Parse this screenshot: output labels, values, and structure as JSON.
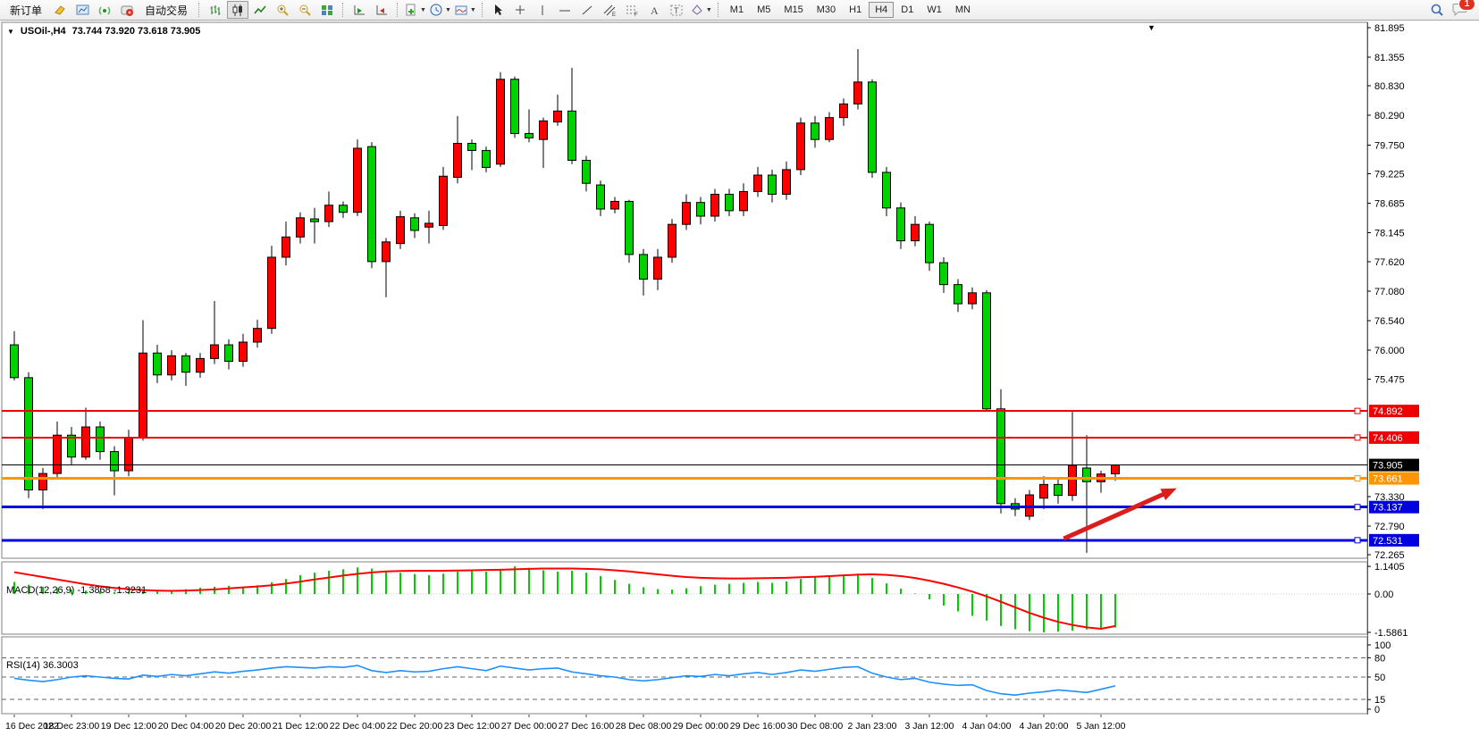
{
  "toolbar": {
    "new_order_label": "新订单",
    "auto_trading_label": "自动交易",
    "timeframes": [
      "M1",
      "M5",
      "M15",
      "M30",
      "H1",
      "H4",
      "D1",
      "W1",
      "MN"
    ],
    "active_timeframe": "H4",
    "notification_count": "1"
  },
  "chart_header": {
    "symbol_period": "USOil-,H4",
    "ohlc": "73.744 73.920 73.618 73.905"
  },
  "macd_panel": {
    "label": "MACD(12,26,9)",
    "values": "-1.3868 -1.3231",
    "axis_labels": [
      {
        "value": 1.1405,
        "label": "1.1405"
      },
      {
        "value": 0,
        "label": "0.00"
      },
      {
        "value": -1.5861,
        "label": "-1.5861"
      }
    ]
  },
  "rsi_panel": {
    "label": "RSI(14)",
    "value": "36.3003",
    "axis_labels": [
      {
        "value": 100,
        "label": "100"
      },
      {
        "value": 80,
        "label": "80"
      },
      {
        "value": 50,
        "label": "50"
      },
      {
        "value": 15,
        "label": "15"
      },
      {
        "value": 0,
        "label": "0"
      }
    ],
    "level_lines": [
      80,
      50,
      15
    ]
  },
  "price_axis": {
    "ticks": [
      {
        "value": 81.895,
        "label": "81.895"
      },
      {
        "value": 81.355,
        "label": "81.355"
      },
      {
        "value": 80.83,
        "label": "80.830"
      },
      {
        "value": 80.29,
        "label": "80.290"
      },
      {
        "value": 79.75,
        "label": "79.750"
      },
      {
        "value": 79.225,
        "label": "79.225"
      },
      {
        "value": 78.685,
        "label": "78.685"
      },
      {
        "value": 78.145,
        "label": "78.145"
      },
      {
        "value": 77.62,
        "label": "77.620"
      },
      {
        "value": 77.08,
        "label": "77.080"
      },
      {
        "value": 76.54,
        "label": "76.540"
      },
      {
        "value": 76.0,
        "label": "76.000"
      },
      {
        "value": 75.475,
        "label": "75.475"
      },
      {
        "value": 73.33,
        "label": "73.330"
      },
      {
        "value": 72.79,
        "label": "72.790"
      },
      {
        "value": 72.265,
        "label": "72.265"
      }
    ],
    "badges": [
      {
        "value": 74.892,
        "label": "74.892",
        "color": "#f00000"
      },
      {
        "value": 74.406,
        "label": "74.406",
        "color": "#f00000"
      },
      {
        "value": 73.905,
        "label": "73.905",
        "color": "#000000"
      },
      {
        "value": 73.661,
        "label": "73.661",
        "color": "#ff9500"
      },
      {
        "value": 73.137,
        "label": "73.137",
        "color": "#0000e0"
      },
      {
        "value": 72.531,
        "label": "72.531",
        "color": "#0000e0"
      }
    ]
  },
  "time_axis": {
    "labels": [
      "16 Dec 2022",
      "18 Dec 23:00",
      "19 Dec 12:00",
      "20 Dec 04:00",
      "20 Dec 20:00",
      "21 Dec 12:00",
      "22 Dec 04:00",
      "22 Dec 20:00",
      "23 Dec 12:00",
      "27 Dec 00:00",
      "27 Dec 16:00",
      "28 Dec 08:00",
      "29 Dec 00:00",
      "29 Dec 16:00",
      "30 Dec 08:00",
      "2 Jan 23:00",
      "3 Jan 12:00",
      "4 Jan 04:00",
      "4 Jan 20:00",
      "5 Jan 12:00"
    ]
  },
  "chart_data": {
    "type": "candlestick",
    "symbol": "USOil-",
    "period": "H4",
    "up_color": "#fe0000",
    "down_color": "#00d200",
    "candles_ohlc": [
      [
        76.1,
        76.35,
        75.45,
        75.5
      ],
      [
        75.5,
        75.6,
        73.3,
        73.45
      ],
      [
        73.45,
        73.85,
        73.1,
        73.75
      ],
      [
        73.75,
        74.7,
        73.65,
        74.45
      ],
      [
        74.45,
        74.6,
        73.9,
        74.05
      ],
      [
        74.05,
        74.95,
        74.0,
        74.6
      ],
      [
        74.6,
        74.7,
        74.0,
        74.15
      ],
      [
        74.15,
        74.25,
        73.35,
        73.8
      ],
      [
        73.8,
        74.55,
        73.7,
        74.4
      ],
      [
        74.4,
        76.55,
        74.35,
        75.95
      ],
      [
        75.95,
        76.1,
        75.4,
        75.55
      ],
      [
        75.55,
        76.0,
        75.45,
        75.9
      ],
      [
        75.9,
        75.95,
        75.35,
        75.6
      ],
      [
        75.6,
        75.95,
        75.5,
        75.85
      ],
      [
        75.85,
        76.9,
        75.75,
        76.1
      ],
      [
        76.1,
        76.2,
        75.65,
        75.8
      ],
      [
        75.8,
        76.3,
        75.7,
        76.15
      ],
      [
        76.15,
        76.56,
        76.05,
        76.4
      ],
      [
        76.4,
        77.91,
        76.3,
        77.7
      ],
      [
        77.7,
        78.35,
        77.55,
        78.07
      ],
      [
        78.07,
        78.52,
        77.95,
        78.42
      ],
      [
        78.4,
        78.6,
        77.95,
        78.35
      ],
      [
        78.35,
        78.9,
        78.25,
        78.65
      ],
      [
        78.65,
        78.72,
        78.42,
        78.52
      ],
      [
        78.52,
        79.85,
        78.45,
        79.69
      ],
      [
        79.72,
        79.8,
        77.5,
        77.62
      ],
      [
        77.62,
        78.05,
        76.97,
        77.98
      ],
      [
        77.95,
        78.55,
        77.85,
        78.44
      ],
      [
        78.42,
        78.5,
        78.05,
        78.19
      ],
      [
        78.25,
        78.55,
        77.95,
        78.32
      ],
      [
        78.28,
        79.35,
        78.2,
        79.18
      ],
      [
        79.16,
        80.28,
        79.05,
        79.78
      ],
      [
        79.78,
        79.85,
        79.29,
        79.65
      ],
      [
        79.65,
        79.72,
        79.25,
        79.34
      ],
      [
        79.4,
        81.08,
        79.35,
        80.95
      ],
      [
        80.95,
        81.0,
        79.88,
        79.96
      ],
      [
        79.96,
        80.4,
        79.8,
        79.88
      ],
      [
        79.85,
        80.25,
        79.33,
        80.19
      ],
      [
        80.17,
        80.67,
        80.1,
        80.37
      ],
      [
        80.37,
        81.16,
        79.4,
        79.47
      ],
      [
        79.47,
        79.55,
        78.9,
        79.05
      ],
      [
        79.02,
        79.1,
        78.45,
        78.58
      ],
      [
        78.58,
        78.8,
        78.5,
        78.72
      ],
      [
        78.72,
        78.75,
        77.6,
        77.75
      ],
      [
        77.75,
        77.85,
        77.0,
        77.3
      ],
      [
        77.3,
        77.85,
        77.1,
        77.7
      ],
      [
        77.7,
        78.4,
        77.6,
        78.3
      ],
      [
        78.3,
        78.85,
        78.2,
        78.7
      ],
      [
        78.7,
        78.8,
        78.3,
        78.45
      ],
      [
        78.45,
        78.95,
        78.35,
        78.85
      ],
      [
        78.85,
        78.95,
        78.45,
        78.55
      ],
      [
        78.55,
        79.05,
        78.45,
        78.9
      ],
      [
        78.9,
        79.35,
        78.8,
        79.2
      ],
      [
        79.2,
        79.3,
        78.7,
        78.85
      ],
      [
        78.85,
        79.45,
        78.75,
        79.3
      ],
      [
        79.3,
        80.25,
        79.2,
        80.15
      ],
      [
        80.15,
        80.28,
        79.7,
        79.85
      ],
      [
        79.85,
        80.35,
        79.8,
        80.25
      ],
      [
        80.25,
        80.6,
        80.1,
        80.5
      ],
      [
        80.5,
        81.5,
        80.4,
        80.9
      ],
      [
        80.9,
        80.95,
        79.15,
        79.25
      ],
      [
        79.25,
        79.35,
        78.45,
        78.6
      ],
      [
        78.6,
        78.7,
        77.85,
        78.0
      ],
      [
        78.0,
        78.45,
        77.9,
        78.3
      ],
      [
        78.3,
        78.35,
        77.45,
        77.6
      ],
      [
        77.6,
        77.7,
        77.05,
        77.2
      ],
      [
        77.2,
        77.3,
        76.7,
        76.85
      ],
      [
        76.85,
        77.15,
        76.75,
        77.05
      ],
      [
        77.05,
        77.1,
        74.88,
        74.93
      ],
      [
        74.93,
        75.29,
        73.02,
        73.2
      ],
      [
        73.2,
        73.3,
        72.97,
        73.1
      ],
      [
        72.97,
        73.45,
        72.9,
        73.36
      ],
      [
        73.3,
        73.7,
        73.1,
        73.55
      ],
      [
        73.55,
        73.65,
        73.2,
        73.35
      ],
      [
        73.35,
        74.89,
        73.25,
        73.9
      ],
      [
        73.85,
        74.45,
        72.3,
        73.6
      ],
      [
        73.6,
        73.8,
        73.4,
        73.74
      ],
      [
        73.744,
        73.92,
        73.618,
        73.905
      ]
    ],
    "horizontal_lines": [
      {
        "price": 74.892,
        "color": "#f00000",
        "width": 2,
        "handle": true
      },
      {
        "price": 74.406,
        "color": "#f00000",
        "width": 2,
        "handle": true
      },
      {
        "price": 73.905,
        "color": "#000000",
        "width": 1,
        "handle": false
      },
      {
        "price": 73.661,
        "color": "#ff9500",
        "width": 3,
        "handle": true
      },
      {
        "price": 73.137,
        "color": "#0000e0",
        "width": 3,
        "handle": true
      },
      {
        "price": 72.531,
        "color": "#0000e0",
        "width": 3,
        "handle": true
      }
    ],
    "arrow_annotation": {
      "x1_bar": 73.4,
      "y1_price": 72.56,
      "x2_bar": 81.3,
      "y2_price": 73.48,
      "color": "#dd1c1c"
    },
    "macd_histogram": [
      0.5,
      0.38,
      0.3,
      0.24,
      0.18,
      0.14,
      0.1,
      0.08,
      0.1,
      0.14,
      0.12,
      0.16,
      0.2,
      0.26,
      0.3,
      0.34,
      0.3,
      0.36,
      0.48,
      0.62,
      0.78,
      0.88,
      0.96,
      1.02,
      1.1,
      1.05,
      0.92,
      0.88,
      0.82,
      0.78,
      0.84,
      0.92,
      0.96,
      0.92,
      1.02,
      1.1405,
      1.08,
      0.98,
      0.92,
      0.96,
      0.88,
      0.74,
      0.58,
      0.42,
      0.28,
      0.2,
      0.18,
      0.24,
      0.32,
      0.38,
      0.42,
      0.46,
      0.5,
      0.46,
      0.52,
      0.62,
      0.68,
      0.74,
      0.8,
      0.84,
      0.66,
      0.44,
      0.22,
      0.02,
      -0.22,
      -0.48,
      -0.72,
      -0.9,
      -1.1,
      -1.32,
      -1.46,
      -1.54,
      -1.5861,
      -1.56,
      -1.52,
      -1.47,
      -1.43,
      -1.3868
    ],
    "macd_signal": [
      0.9,
      0.8,
      0.7,
      0.6,
      0.5,
      0.4,
      0.32,
      0.25,
      0.2,
      0.16,
      0.14,
      0.13,
      0.14,
      0.16,
      0.19,
      0.23,
      0.27,
      0.31,
      0.36,
      0.43,
      0.51,
      0.6,
      0.68,
      0.76,
      0.83,
      0.89,
      0.93,
      0.95,
      0.96,
      0.96,
      0.96,
      0.97,
      0.98,
      0.99,
      1.0,
      1.02,
      1.04,
      1.05,
      1.05,
      1.05,
      1.04,
      1.02,
      0.98,
      0.93,
      0.87,
      0.81,
      0.75,
      0.7,
      0.67,
      0.65,
      0.64,
      0.64,
      0.65,
      0.66,
      0.67,
      0.69,
      0.71,
      0.74,
      0.77,
      0.8,
      0.81,
      0.79,
      0.74,
      0.66,
      0.55,
      0.42,
      0.27,
      0.1,
      -0.1,
      -0.32,
      -0.55,
      -0.78,
      -0.98,
      -1.15,
      -1.28,
      -1.38,
      -1.44,
      -1.3231
    ],
    "rsi_values": [
      48,
      45,
      43,
      46,
      50,
      52,
      50,
      48,
      47,
      53,
      51,
      54,
      52,
      55,
      58,
      56,
      59,
      61,
      64,
      66,
      65,
      64,
      66,
      65,
      68,
      60,
      57,
      60,
      58,
      59,
      63,
      66,
      63,
      60,
      67,
      64,
      61,
      63,
      64,
      58,
      55,
      52,
      50,
      46,
      44,
      46,
      49,
      52,
      51,
      54,
      52,
      55,
      57,
      54,
      57,
      61,
      59,
      62,
      65,
      66,
      56,
      50,
      46,
      48,
      42,
      39,
      37,
      38,
      29,
      24,
      22,
      25,
      27,
      30,
      28,
      26,
      31,
      36.3
    ],
    "macd_color": "#00cc00",
    "macd_signal_color": "#ff0000",
    "rsi_color": "#1e90ff"
  }
}
